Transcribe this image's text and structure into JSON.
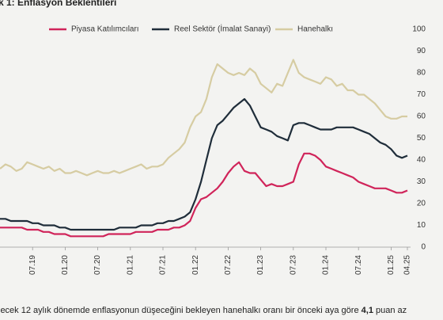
{
  "chart_data": {
    "type": "line",
    "title": "k 1: Enflasyon Beklentileri",
    "categories": [
      null,
      null,
      null,
      null,
      null,
      null,
      "07.19",
      null,
      null,
      null,
      null,
      null,
      "01.20",
      null,
      null,
      null,
      null,
      null,
      "07.20",
      null,
      null,
      null,
      null,
      null,
      "01.21",
      null,
      null,
      null,
      null,
      null,
      "07.21",
      null,
      null,
      null,
      null,
      null,
      "01.22",
      null,
      null,
      null,
      null,
      null,
      "07.22",
      null,
      null,
      null,
      null,
      null,
      "01.23",
      null,
      null,
      null,
      null,
      null,
      "07.23",
      null,
      null,
      null,
      null,
      null,
      "01.24",
      null,
      null,
      null,
      null,
      null,
      "07.24",
      null,
      null,
      null,
      null,
      null,
      "01.25",
      null,
      null,
      "04.25"
    ],
    "series": [
      {
        "name": "Piyasa Katılımcıları",
        "color": "#d0245a",
        "values": [
          9,
          9,
          9,
          9,
          9,
          8,
          8,
          8,
          7,
          7,
          6,
          6,
          6,
          5,
          5,
          5,
          5,
          5,
          5,
          5,
          6,
          6,
          6,
          6,
          6,
          7,
          7,
          7,
          7,
          8,
          8,
          8,
          9,
          9,
          10,
          12,
          18,
          22,
          23,
          25,
          27,
          30,
          34,
          37,
          39,
          35,
          34,
          34,
          31,
          28,
          29,
          28,
          28,
          29,
          30,
          38,
          43,
          43,
          42,
          40,
          37,
          36,
          35,
          34,
          33,
          32,
          30,
          29,
          28,
          27,
          27,
          27,
          26,
          25,
          25,
          26
        ]
      },
      {
        "name": "Reel Sektör (İmalat Sanayi)",
        "color": "#1f2d3a",
        "values": [
          13,
          13,
          12,
          12,
          12,
          12,
          11,
          11,
          10,
          10,
          10,
          9,
          9,
          8,
          8,
          8,
          8,
          8,
          8,
          8,
          8,
          8,
          9,
          9,
          9,
          9,
          10,
          10,
          10,
          11,
          11,
          12,
          12,
          13,
          14,
          16,
          22,
          30,
          40,
          50,
          56,
          58,
          61,
          64,
          66,
          68,
          65,
          60,
          55,
          54,
          53,
          51,
          50,
          49,
          56,
          57,
          57,
          56,
          55,
          54,
          54,
          54,
          55,
          55,
          55,
          55,
          54,
          53,
          52,
          50,
          48,
          47,
          45,
          42,
          41,
          42
        ]
      },
      {
        "name": "Hanehalkı",
        "color": "#d6cca2",
        "values": [
          36,
          38,
          37,
          35,
          36,
          39,
          38,
          37,
          36,
          37,
          35,
          36,
          34,
          34,
          35,
          34,
          33,
          34,
          35,
          34,
          34,
          35,
          34,
          35,
          36,
          37,
          38,
          36,
          37,
          37,
          38,
          41,
          43,
          45,
          48,
          55,
          60,
          62,
          68,
          78,
          84,
          82,
          80,
          79,
          80,
          79,
          82,
          80,
          75,
          73,
          71,
          75,
          74,
          80,
          86,
          80,
          78,
          77,
          76,
          75,
          78,
          77,
          74,
          75,
          72,
          72,
          70,
          70,
          68,
          66,
          63,
          60,
          59,
          59,
          60,
          60
        ]
      }
    ],
    "ylim": [
      0,
      100
    ],
    "yticks": [
      0,
      10,
      20,
      30,
      40,
      50,
      60,
      70,
      80,
      90,
      100
    ],
    "grid": false
  },
  "caption": {
    "before": "lecek 12 aylık dönemde enflasyonun düşeceğini bekleyen hanehalkı oranı bir önceki aya göre",
    "bold": "4,1",
    "after": "puan az"
  }
}
